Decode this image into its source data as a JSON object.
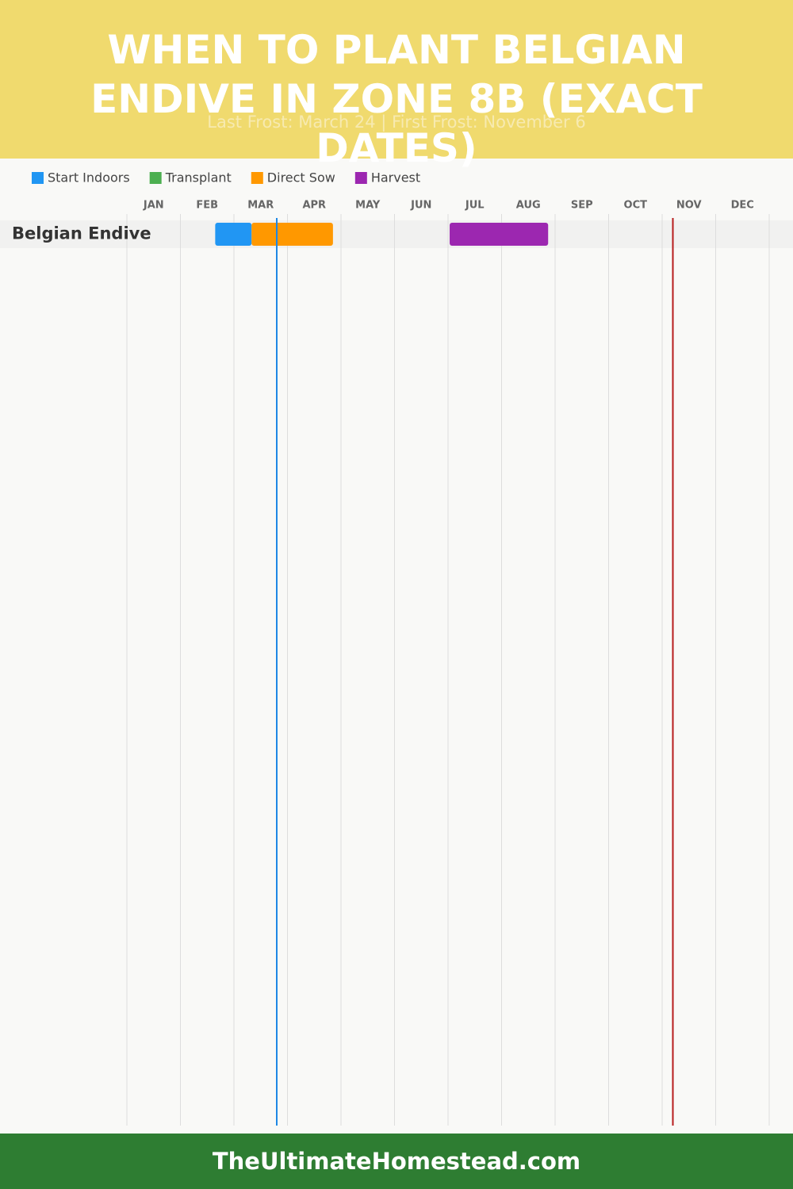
{
  "chart_data": {
    "type": "gantt",
    "title": "WHEN TO PLANT BELGIAN ENDIVE IN ZONE 8B (EXACT DATES)",
    "subtitle": "Last Frost: March 24 | First Frost: November 6",
    "months": [
      "JAN",
      "FEB",
      "MAR",
      "APR",
      "MAY",
      "JUN",
      "JUL",
      "AUG",
      "SEP",
      "OCT",
      "NOV",
      "DEC"
    ],
    "xlim": [
      0,
      12
    ],
    "categories": [
      "Belgian Endive"
    ],
    "series": [
      {
        "name": "Start Indoors",
        "color": "#2196f3",
        "values": [
          [
            1.65,
            2.33
          ]
        ]
      },
      {
        "name": "Transplant",
        "color": "#4caf50",
        "values": [
          null
        ]
      },
      {
        "name": "Direct Sow",
        "color": "#ff9800",
        "values": [
          [
            2.33,
            3.85
          ]
        ]
      },
      {
        "name": "Harvest",
        "color": "#9c27b0",
        "values": [
          [
            6.03,
            7.87
          ]
        ]
      }
    ],
    "markers": [
      {
        "value": 2.8,
        "color": "#1e88e5"
      },
      {
        "value": 10.2,
        "color": "#b71c1c"
      }
    ],
    "grid": true,
    "footer": "TheUltimateHomestead.com"
  }
}
